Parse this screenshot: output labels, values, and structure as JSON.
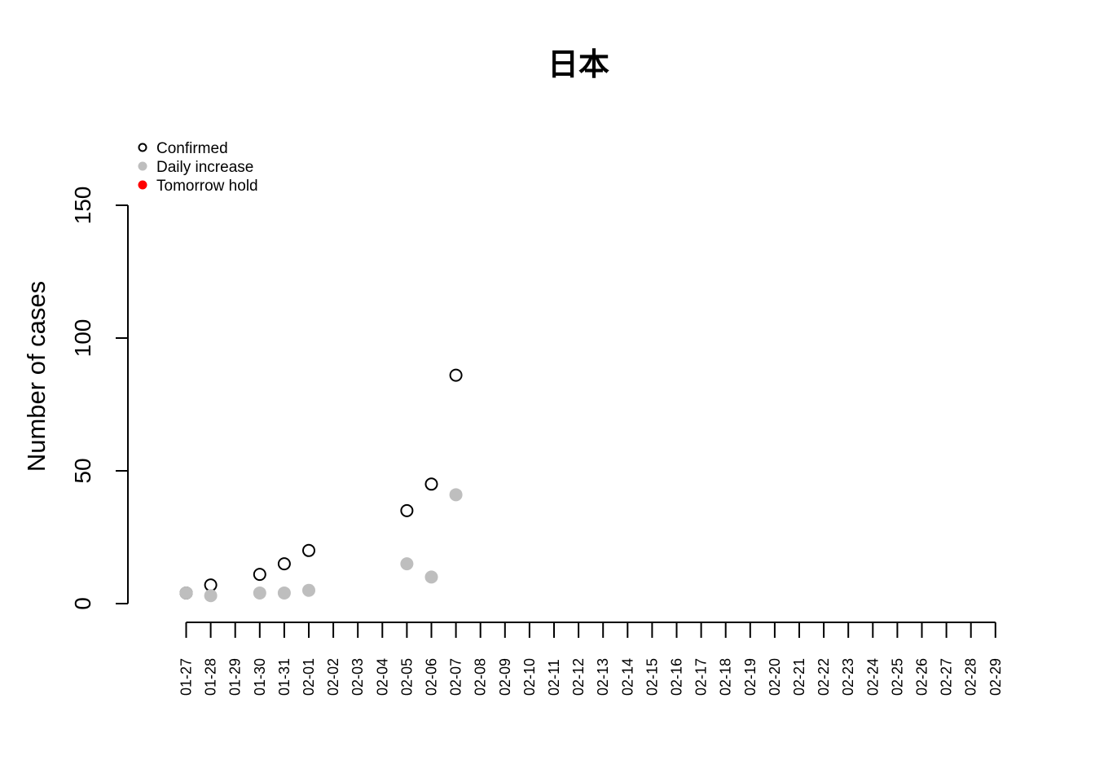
{
  "chart_data": {
    "type": "scatter",
    "title": "日本",
    "xlabel": "",
    "ylabel": "Number of cases",
    "ylim": [
      0,
      150
    ],
    "y_ticks": [
      "0",
      "50",
      "100",
      "150"
    ],
    "x": [
      "01-27",
      "01-28",
      "01-29",
      "01-30",
      "01-31",
      "02-01",
      "02-02",
      "02-03",
      "02-04",
      "02-05",
      "02-06",
      "02-07",
      "02-08",
      "02-09",
      "02-10",
      "02-11",
      "02-12",
      "02-13",
      "02-14",
      "02-15",
      "02-16",
      "02-17",
      "02-18",
      "02-19",
      "02-20",
      "02-21",
      "02-22",
      "02-23",
      "02-24",
      "02-25",
      "02-26",
      "02-27",
      "02-28",
      "02-29"
    ],
    "grid": false,
    "legend_position": "top-left",
    "series": [
      {
        "name": "Confirmed",
        "style": "open-circle",
        "color": "#000000",
        "points": [
          {
            "x": "01-27",
            "y": 4
          },
          {
            "x": "01-28",
            "y": 7
          },
          {
            "x": "01-30",
            "y": 11
          },
          {
            "x": "01-31",
            "y": 15
          },
          {
            "x": "02-01",
            "y": 20
          },
          {
            "x": "02-05",
            "y": 35
          },
          {
            "x": "02-06",
            "y": 45
          },
          {
            "x": "02-07",
            "y": 86
          }
        ]
      },
      {
        "name": "Daily increase",
        "style": "filled-circle",
        "color": "#bebebe",
        "points": [
          {
            "x": "01-27",
            "y": 4
          },
          {
            "x": "01-28",
            "y": 3
          },
          {
            "x": "01-30",
            "y": 4
          },
          {
            "x": "01-31",
            "y": 4
          },
          {
            "x": "02-01",
            "y": 5
          },
          {
            "x": "02-05",
            "y": 15
          },
          {
            "x": "02-06",
            "y": 10
          },
          {
            "x": "02-07",
            "y": 41
          }
        ]
      },
      {
        "name": "Tomorrow hold",
        "style": "filled-circle",
        "color": "#ff0000",
        "points": []
      }
    ]
  }
}
